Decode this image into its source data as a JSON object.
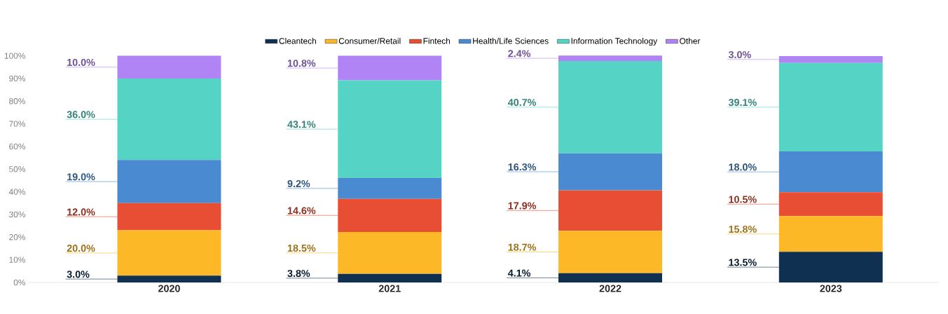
{
  "chart_data": {
    "type": "bar",
    "stacked": true,
    "legend": "top",
    "categories": [
      "2020",
      "2021",
      "2022",
      "2023"
    ],
    "ylim": [
      0,
      100.5
    ],
    "yticks": [
      {
        "value": 0,
        "label": "0%"
      },
      {
        "value": 10,
        "label": "10%"
      },
      {
        "value": 20,
        "label": "20%"
      },
      {
        "value": 30,
        "label": "30%"
      },
      {
        "value": 40,
        "label": "40%"
      },
      {
        "value": 50,
        "label": "50%"
      },
      {
        "value": 60,
        "label": "60%"
      },
      {
        "value": 70,
        "label": "70%"
      },
      {
        "value": 80,
        "label": "80%"
      },
      {
        "value": 90,
        "label": "90%"
      },
      {
        "value": 100,
        "label": "100%"
      }
    ],
    "series": [
      {
        "name": "Cleantech",
        "color": "#0f3050",
        "values": [
          3.0,
          3.8,
          4.1,
          13.5
        ],
        "value_labels": [
          "3.0%",
          "3.8%",
          "4.1%",
          "13.5%"
        ]
      },
      {
        "name": "Consumer/Retail",
        "color": "#fdb827",
        "values": [
          20.0,
          18.5,
          18.7,
          15.8
        ],
        "value_labels": [
          "20.0%",
          "18.5%",
          "18.7%",
          "15.8%"
        ]
      },
      {
        "name": "Fintech",
        "color": "#e84e33",
        "values": [
          12.0,
          14.6,
          17.9,
          10.5
        ],
        "value_labels": [
          "12.0%",
          "14.6%",
          "17.9%",
          "10.5%"
        ]
      },
      {
        "name": "Health/Life Sciences",
        "color": "#4a8ad0",
        "values": [
          19.0,
          9.2,
          16.3,
          18.0
        ],
        "value_labels": [
          "19.0%",
          "9.2%",
          "16.3%",
          "18.0%"
        ]
      },
      {
        "name": "Information Technology",
        "color": "#55d3c5",
        "values": [
          36.0,
          43.1,
          40.7,
          39.1
        ],
        "value_labels": [
          "36.0%",
          "43.1%",
          "40.7%",
          "39.1%"
        ]
      },
      {
        "name": "Other",
        "color": "#b084f5",
        "values": [
          10.0,
          10.8,
          2.4,
          3.0
        ],
        "value_labels": [
          "10.0%",
          "10.8%",
          "2.4%",
          "3.0%"
        ]
      }
    ]
  }
}
